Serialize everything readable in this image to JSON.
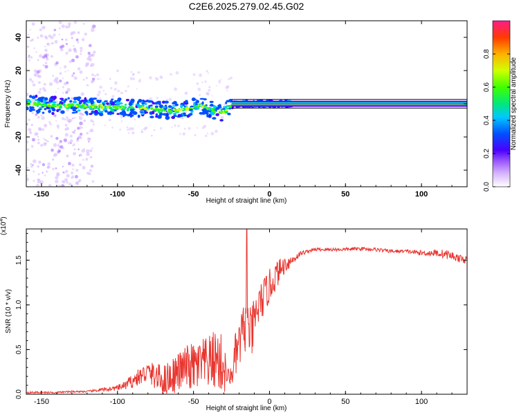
{
  "title": "C2E6.2025.279.02.45.G02",
  "colors": {
    "snr_line": "#e8352f",
    "trace": "#ff1a5a",
    "frame": "#000000"
  },
  "colorbar": {
    "label": "Normalized spectral amplitude",
    "ticks": [
      "0.0",
      "0.2",
      "0.4",
      "0.6",
      "0.8"
    ],
    "tick_values": [
      0.0,
      0.2,
      0.4,
      0.6,
      0.8
    ],
    "range": [
      0,
      1
    ]
  },
  "chart_data": [
    {
      "type": "heatmap",
      "title": "C2E6.2025.279.02.45.G02",
      "xlabel": "Height of straight line (km)",
      "ylabel": "Frequency (Hz)",
      "xlim": [
        -160,
        130
      ],
      "ylim": [
        -50,
        50
      ],
      "xticks": [
        -150,
        -100,
        -50,
        0,
        50,
        100
      ],
      "xtick_labels": [
        "-150",
        "-100",
        "-50",
        "0",
        "50",
        "100"
      ],
      "yticks": [
        -40,
        -20,
        0,
        20,
        40
      ],
      "ytick_labels": [
        "-40",
        "-20",
        "0",
        "20",
        "40"
      ],
      "ridge": {
        "x": [
          -160,
          -140,
          -120,
          -100,
          -80,
          -70,
          -60,
          -50,
          -45,
          -40,
          -35,
          -30,
          -25,
          -20,
          -10,
          0,
          10,
          130
        ],
        "freq": [
          0,
          -1,
          -1.5,
          -2,
          -3,
          -4,
          -4,
          -2,
          -1,
          -3,
          -5,
          -5,
          -1,
          0,
          0,
          0,
          0,
          0
        ]
      }
    },
    {
      "type": "line",
      "xlabel": "Height of straight line (km)",
      "ylabel": "SNR (10 * v/v)",
      "scale_label_base": "(x10",
      "scale_label_exp": "4",
      "scale_label_end": ")",
      "xlim": [
        -160,
        130
      ],
      "ylim": [
        0,
        1.85
      ],
      "xticks": [
        -150,
        -100,
        -50,
        0,
        50,
        100
      ],
      "xtick_labels": [
        "-150",
        "-100",
        "-50",
        "0",
        "50",
        "100"
      ],
      "yticks": [
        0.0,
        0.5,
        1.0,
        1.5
      ],
      "ytick_labels": [
        "0.0",
        "0.5",
        "1.0",
        "1.5"
      ],
      "series": [
        {
          "name": "SNR",
          "x": [
            -160,
            -150,
            -140,
            -130,
            -120,
            -110,
            -100,
            -95,
            -90,
            -85,
            -80,
            -75,
            -70,
            -65,
            -60,
            -55,
            -50,
            -45,
            -40,
            -35,
            -30,
            -28,
            -25,
            -22,
            -20,
            -18,
            -15,
            -12,
            -10,
            -8,
            -5,
            -2,
            0,
            5,
            10,
            15,
            20,
            25,
            30,
            40,
            50,
            60,
            70,
            80,
            90,
            100,
            110,
            115,
            120,
            125,
            130
          ],
          "y": [
            0.02,
            0.02,
            0.02,
            0.03,
            0.03,
            0.05,
            0.07,
            0.1,
            0.15,
            0.2,
            0.25,
            0.2,
            0.15,
            0.2,
            0.25,
            0.3,
            0.3,
            0.32,
            0.35,
            0.4,
            0.3,
            0.2,
            0.2,
            0.45,
            0.55,
            0.65,
            0.8,
            0.65,
            0.8,
            0.95,
            1.05,
            1.15,
            1.2,
            1.35,
            1.45,
            1.5,
            1.57,
            1.6,
            1.62,
            1.62,
            1.62,
            1.63,
            1.62,
            1.6,
            1.6,
            1.58,
            1.58,
            1.57,
            1.55,
            1.52,
            1.5
          ],
          "noise": [
            0.01,
            0.01,
            0.01,
            0.01,
            0.01,
            0.02,
            0.03,
            0.05,
            0.08,
            0.1,
            0.12,
            0.15,
            0.18,
            0.2,
            0.22,
            0.25,
            0.28,
            0.3,
            0.3,
            0.35,
            0.35,
            0.1,
            0.1,
            0.3,
            0.25,
            0.35,
            0.25,
            0.3,
            0.3,
            0.25,
            0.22,
            0.2,
            0.2,
            0.15,
            0.1,
            0.06,
            0.03,
            0.02,
            0.02,
            0.02,
            0.02,
            0.02,
            0.02,
            0.02,
            0.02,
            0.03,
            0.04,
            0.05,
            0.05,
            0.04,
            0.04
          ]
        }
      ]
    }
  ]
}
